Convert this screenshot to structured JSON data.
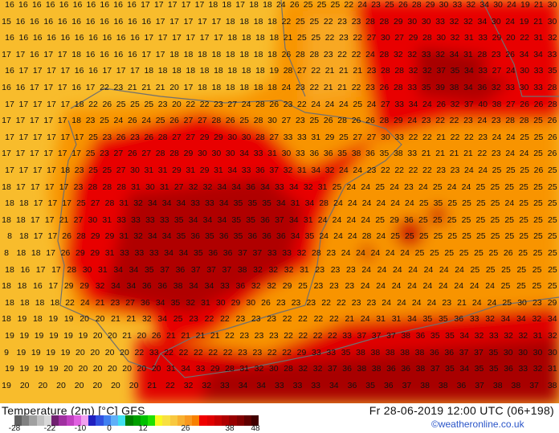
{
  "map": {
    "temperature_rows": [
      "16 16 16 16 16 16 16 16 16 16 17 17 17 17 17 18 18 17 18 18 24 26 25 25 25 22 24 23 25 26 28 29 30 33 32 34 30 24 19 21 30",
      "15 16 16 16 16 16 16 16 16 16 16 17 17 17 17 17 18 18 18 18 22 25 25 22 23 23 28 28 29 30 30 33 32 32 34 30 24 19 21 30",
      "16 16 16 16 16 16 16 16 16 16 17 17 17 17 17 17 18 18 18 18 21 25 25 22 23 22 27 30 27 29 28 30 32 31 33 29 20 22 31 32",
      "17 17 16 17 17 18 16 16 16 16 17 17 18 18 18 18 18 18 18 18 26 28 28 23 22 22 24 28 32 32 33 32 34 31 28 23 26 34 34 33",
      "16 17 17 17 17 16 16 17 17 17 18 18 18 18 18 18 18 18 18 19 28 27 22 21 21 21 23 28 28 32 32 37 35 34 33 27 24 30 33 35",
      "16 16 17 17 17 16 17 22 23 21 21 21 20 17 18 18 18 18 18 18 24 23 22 21 21 22 23 26 28 33 35 39 38 34 36 32 33 30 33 28",
      "17 17 17 17 17 18 22 26 25 25 25 23 20 22 22 23 27 24 28 26 23 22 24 24 24 25 24 27 33 34 24 26 32 37 40 38 27 26 26 28",
      "17 17 17 17 17 18 23 25 24 26 24 25 26 27 27 28 26 25 28 30 27 23 25 26 28 26 26 28 29 24 23 22 22 23 24 23 28 28 25 26",
      "17 17 17 17 17 17 25 23 26 23 26 28 27 27 29 29 30 30 28 27 33 33 31 29 25 27 27 30 33 22 22 21 22 22 23 24 24 25 25 26",
      "17 17 17 17 17 17 25 23 27 26 27 28 28 29 30 30 30 34 33 31 30 33 36 36 35 38 36 35 38 33 21 21 21 21 22 23 24 24 25 26",
      "17 17 17 17 18 23 25 25 27 30 31 31 29 31 29 31 34 33 36 37 32 31 34 32 24 24 23 22 22 22 22 23 23 24 24 25 25 25 26 25",
      "18 17 17 17 17 23 28 28 28 31 30 31 27 32 32 34 34 36 34 33 34 32 31 25 24 24 25 24 23 24 25 24 24 25 25 25 25 25 25",
      "18 18 17 17 17 25 27 28 31 32 34 34 34 33 33 34 35 35 35 34 31 34 28 24 24 24 24 24 24 25 35 25 25 25 25 24 25 25 25",
      "18 18 17 17 21 27 30 31 33 33 33 33 35 34 34 34 35 35 36 37 34 31 24 24 24 24 25 29 36 25 25 25 25 25 25 25 25 25 25",
      "8 18 17 17 26 28 29 29 31 32 34 34 35 36 35 36 35 36 36 36 34 35 24 24 24 28 24 25 25 25 25 25 25 25 25 25 25 25 25",
      "8 18 18 17 26 29 29 31 33 33 33 34 34 35 36 36 37 37 33 33 32 28 23 24 24 24 24 24 25 25 25 25 25 25 26 25 25 25",
      "18 16 17 17 28 30 31 34 34 35 37 36 37 37 37 38 32 32 32 31 23 23 23 24 24 24 24 24 24 24 25 25 25 25 25 25",
      "18 18 16 17 29 29 32 34 34 36 36 38 34 34 33 36 32 32 29 25 23 23 23 24 24 24 24 24 24 24 24 24 25 25 25 25",
      "18 18 18 18 22 24 21 23 27 36 34 35 32 31 30 29 30 26 23 23 23 22 22 23 23 24 24 24 24 23 21 24 24 25 30 23 29",
      "18 19 18 19 19 20 20 21 21 32 34 25 23 22 22 23 23 23 22 22 22 22 21 24 31 31 34 35 35 36 33 32 34 34 32 34",
      "19 19 19 19 19 19 20 20 21 20 26 21 21 21 21 22 23 23 23 22 22 22 22 33 37 37 37 38 36 35 35 34 32 33 32 32 31 32",
      "9 19 19 19 19 20 20 20 20 22 33 22 22 22 22 22 23 23 22 22 29 33 33 35 38 38 38 38 38 36 36 37 37 35 30 30 30 30",
      "19 19 19 19 20 20 20 20 20 20 20 31 34 33 29 28 31 32 30 28 32 32 37 36 38 38 36 36 38 37 35 34 35 35 36 33 32 31",
      "19 20 20 20 20 20 20 20 21 22 32 32 33 34 34 33 33 33 34 36 35 36 37 38 38 36 37 38 38 37 38"
    ],
    "colors": {
      "ocean": "#f8b828",
      "warm": "#f88c00",
      "hot": "#e80000",
      "very_hot": "#a80000",
      "coast": "#707070"
    }
  },
  "legend": {
    "title": "Temperature (2m) [°C] GFS",
    "valid_time": "Fr 28-06-2019 12:00 UTC (06+198)",
    "copyright": "©weatheronline.co.uk",
    "ticks": [
      "-28",
      "-22",
      "-10",
      "0",
      "12",
      "26",
      "38",
      "48"
    ],
    "scale_colors": [
      "#606060",
      "#808080",
      "#a0a0a0",
      "#c0c0c0",
      "#d8d8d8",
      "#702070",
      "#a030a0",
      "#c040c0",
      "#e060e0",
      "#f0a0f0",
      "#2020c0",
      "#3050e0",
      "#4080f0",
      "#60b0f8",
      "#40e0f0",
      "#008000",
      "#00a000",
      "#00c000",
      "#20e000",
      "#f8f820",
      "#f8e040",
      "#f8c840",
      "#f8b030",
      "#f89820",
      "#f88000",
      "#f00000",
      "#e00000",
      "#c80000",
      "#b00000",
      "#980000",
      "#800000",
      "#600000",
      "#400000"
    ]
  }
}
